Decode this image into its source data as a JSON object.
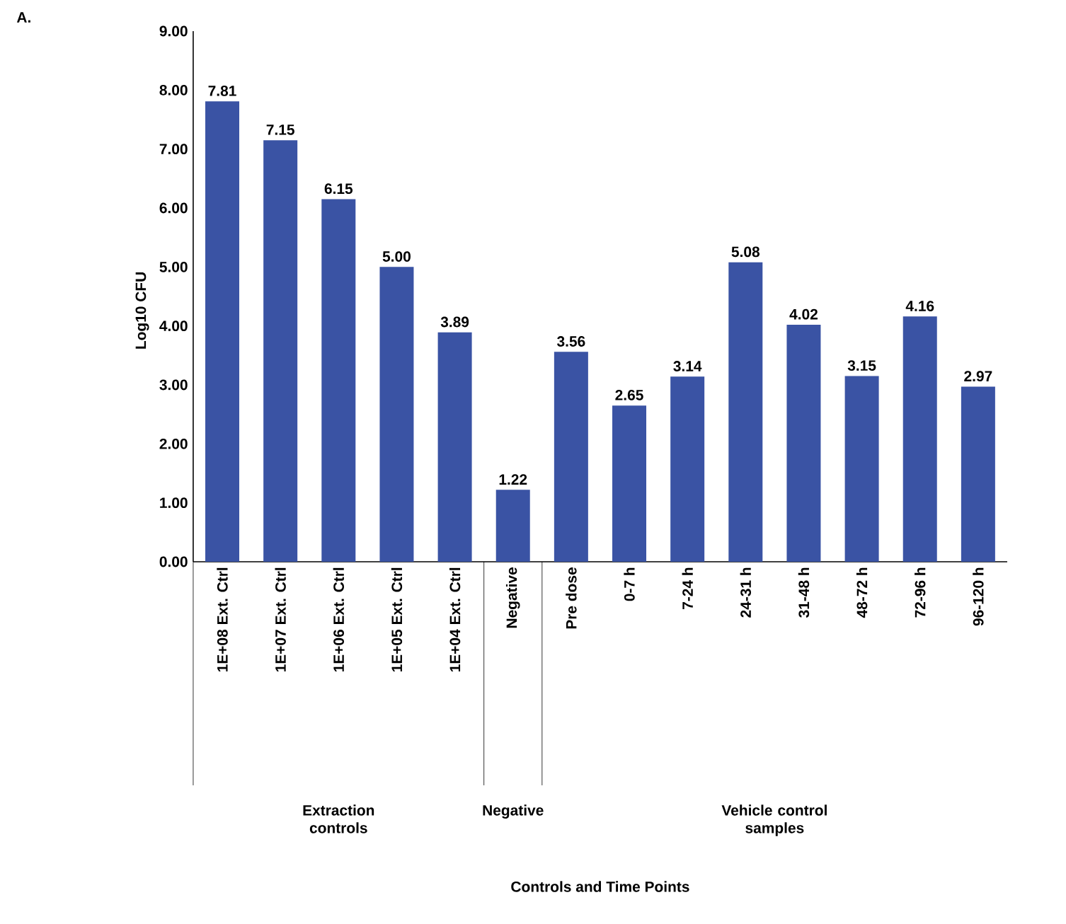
{
  "chart_data": {
    "type": "bar",
    "ylabel": "Log10 CFU",
    "categories": [
      "1E+08 Ext. Ctrl",
      "1E+07 Ext. Ctrl",
      "1E+06 Ext. Ctrl",
      "1E+05 Ext. Ctrl",
      "1E+04 Ext. Ctrl",
      "Negative",
      "Pre dose",
      "0-7 h",
      "7-24 h",
      "24-31 h",
      "31-48 h",
      "48-72 h",
      "72-96 h",
      "96-120 h"
    ],
    "values": [
      7.81,
      7.15,
      6.15,
      5.0,
      3.89,
      1.22,
      3.56,
      2.65,
      3.14,
      5.08,
      4.02,
      3.15,
      4.16,
      2.97
    ],
    "value_labels": [
      "7.81",
      "7.15",
      "6.15",
      "5.00",
      "3.89",
      "1.22",
      "3.56",
      "2.65",
      "3.14",
      "5.08",
      "4.02",
      "3.15",
      "4.16",
      "2.97"
    ],
    "color": "#3a53a4",
    "ylim": [
      0,
      9
    ],
    "yticks": [
      {
        "value": 0,
        "label": "0.00"
      },
      {
        "value": 1,
        "label": "1.00"
      },
      {
        "value": 2,
        "label": "2.00"
      },
      {
        "value": 3,
        "label": "3.00"
      },
      {
        "value": 4,
        "label": "4.00"
      },
      {
        "value": 5,
        "label": "5.00"
      },
      {
        "value": 6,
        "label": "6.00"
      },
      {
        "value": 7,
        "label": "7.00"
      },
      {
        "value": 8,
        "label": "8.00"
      },
      {
        "value": 9,
        "label": "9.00"
      }
    ],
    "grid": false,
    "annotations": [
      "A.",
      "Extraction controls",
      "Negative",
      "Vehicle control samples",
      "Controls and Time Points"
    ]
  }
}
